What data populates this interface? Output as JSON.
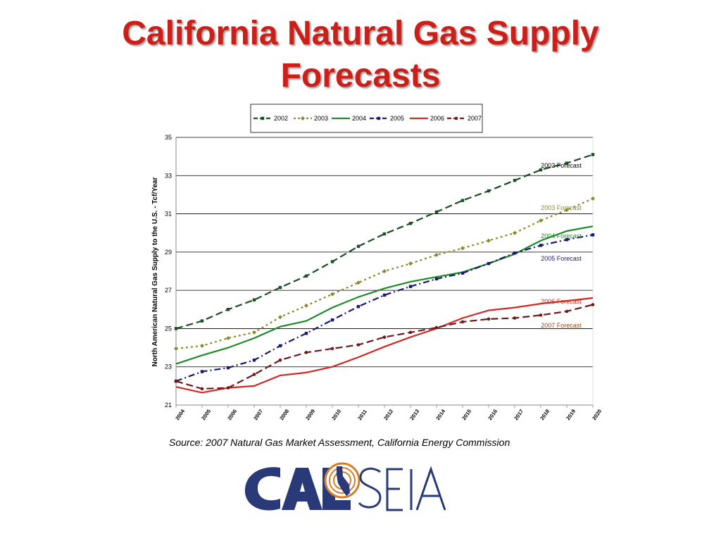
{
  "title_line1": "California Natural Gas Supply",
  "title_line2": "Forecasts",
  "source": "Source:  2007 Natural Gas Market Assessment, California Energy Commission",
  "logo": {
    "text_left": "CAL",
    "text_right": "SEIA",
    "icon": "california-sun-logo-icon",
    "colors": {
      "navy": "#2a3a78",
      "orange": "#d27d2b"
    }
  },
  "chart_data": {
    "type": "line",
    "ylabel": "North American Natural Gas Supply to the U.S. - Tcf/Year",
    "xlabel": "",
    "ylim": [
      21,
      35
    ],
    "yticks": [
      21,
      23,
      25,
      27,
      29,
      31,
      33,
      35
    ],
    "categories": [
      "2004",
      "2005",
      "2006",
      "2007",
      "2008",
      "2009",
      "2010",
      "2011",
      "2012",
      "2013",
      "2014",
      "2015",
      "2016",
      "2017",
      "2018",
      "2019",
      "2020"
    ],
    "grid": "horizontal",
    "legend_position": "top",
    "series": [
      {
        "name": "2002",
        "color": "#1d4d22",
        "style": "dashed-square",
        "label": "2002 Forecast",
        "label_color": "#000000",
        "values": [
          25.0,
          25.4,
          26.0,
          26.5,
          27.15,
          27.75,
          28.5,
          29.3,
          29.95,
          30.5,
          31.1,
          31.7,
          32.2,
          32.75,
          33.3,
          33.65,
          34.1
        ]
      },
      {
        "name": "2003",
        "color": "#8a8a2a",
        "style": "dotted-diamond",
        "label": "2003 Forecast",
        "label_color": "#8a8a2a",
        "values": [
          23.95,
          24.1,
          24.5,
          24.8,
          25.6,
          26.2,
          26.8,
          27.4,
          28.0,
          28.4,
          28.85,
          29.2,
          29.6,
          30.0,
          30.65,
          31.2,
          31.8
        ]
      },
      {
        "name": "2004",
        "color": "#1f8a2a",
        "style": "solid",
        "label": "2004 Forecast",
        "label_color": "#1f8a2a",
        "values": [
          23.15,
          23.6,
          24.0,
          24.5,
          25.1,
          25.4,
          26.1,
          26.65,
          27.1,
          27.45,
          27.7,
          27.95,
          28.4,
          28.9,
          29.6,
          30.1,
          30.35
        ]
      },
      {
        "name": "2005",
        "color": "#1a1a6e",
        "style": "dashdot-square",
        "label": "2005 Forecast",
        "label_color": "#1a1a6e",
        "values": [
          22.25,
          22.75,
          22.95,
          23.35,
          24.1,
          24.75,
          25.45,
          26.15,
          26.75,
          27.2,
          27.6,
          27.9,
          28.4,
          28.95,
          29.35,
          29.65,
          29.9
        ]
      },
      {
        "name": "2006",
        "color": "#cc2a22",
        "style": "solid",
        "label": "2006 Forecast",
        "label_color": "#cc2a22",
        "values": [
          21.95,
          21.65,
          21.9,
          22.0,
          22.55,
          22.7,
          23.0,
          23.5,
          24.05,
          24.55,
          25.0,
          25.55,
          25.95,
          26.1,
          26.3,
          26.45,
          26.6
        ]
      },
      {
        "name": "2007",
        "color": "#6e1a1a",
        "style": "dashed-circle",
        "label": "2007 Forecast",
        "label_color": "#8a4a1a",
        "values": [
          22.25,
          21.85,
          21.9,
          22.6,
          23.35,
          23.75,
          23.95,
          24.15,
          24.55,
          24.8,
          25.05,
          25.35,
          25.5,
          25.55,
          25.7,
          25.9,
          26.25
        ]
      }
    ]
  }
}
